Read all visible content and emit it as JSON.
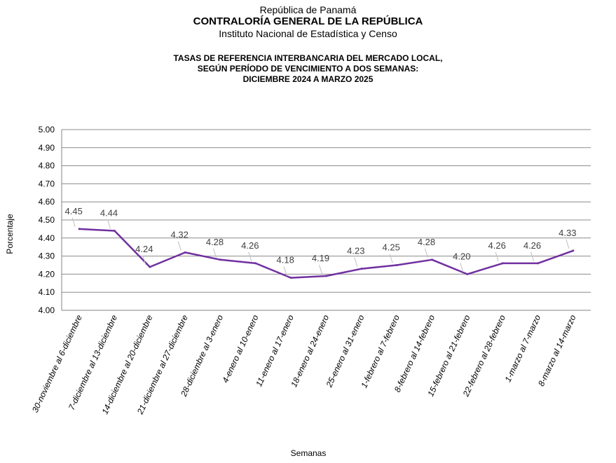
{
  "header": {
    "line1": "República de Panamá",
    "line2": "CONTRALORÍA GENERAL DE LA REPÚBLICA",
    "line3": "Instituto Nacional de Estadística y Censo"
  },
  "chart_data": {
    "type": "line",
    "title": [
      "TASAS DE REFERENCIA INTERBANCARIA  DEL MERCADO LOCAL,",
      "SEGÚN PERÍODO DE VENCIMIENTO  A DOS SEMANAS:",
      "DICIEMBRE  2024 A MARZO 2025"
    ],
    "xlabel": "Semanas",
    "ylabel": "Porcentaje",
    "ylim": [
      4.0,
      5.0
    ],
    "yticks": [
      "4.00",
      "4.10",
      "4.20",
      "4.30",
      "4.40",
      "4.50",
      "4.60",
      "4.70",
      "4.80",
      "4.90",
      "5.00"
    ],
    "grid": true,
    "line_color": "#7030A0",
    "categories": [
      "30-noviembre al 6-diciembre",
      "7-diciembre al 13-diciembre",
      "14-diciembre al 20-diciembre",
      "21-diciembre al 27-diciembre",
      "28-diciembre al 3-enero",
      "4-enero al 10-enero",
      "11-enero al 17-enero",
      "18-enero al 24-enero",
      "25-enero al 31-enero",
      "1-febrero al 7-febrero",
      "8-febrero al 14-febrero",
      "15-febrero al 21-febrero",
      "22-febrero al 28-febrero",
      "1-marzo al 7-marzo",
      "8-marzo al 14-marzo"
    ],
    "values": [
      4.45,
      4.44,
      4.24,
      4.32,
      4.28,
      4.26,
      4.18,
      4.19,
      4.23,
      4.25,
      4.28,
      4.2,
      4.26,
      4.26,
      4.33
    ],
    "data_labels": [
      "4.45",
      "4.44",
      "4.24",
      "4.32",
      "4.28",
      "4.26",
      "4.18",
      "4.19",
      "4.23",
      "4.25",
      "4.28",
      "4.20",
      "4.26",
      "4.26",
      "4.33"
    ]
  }
}
